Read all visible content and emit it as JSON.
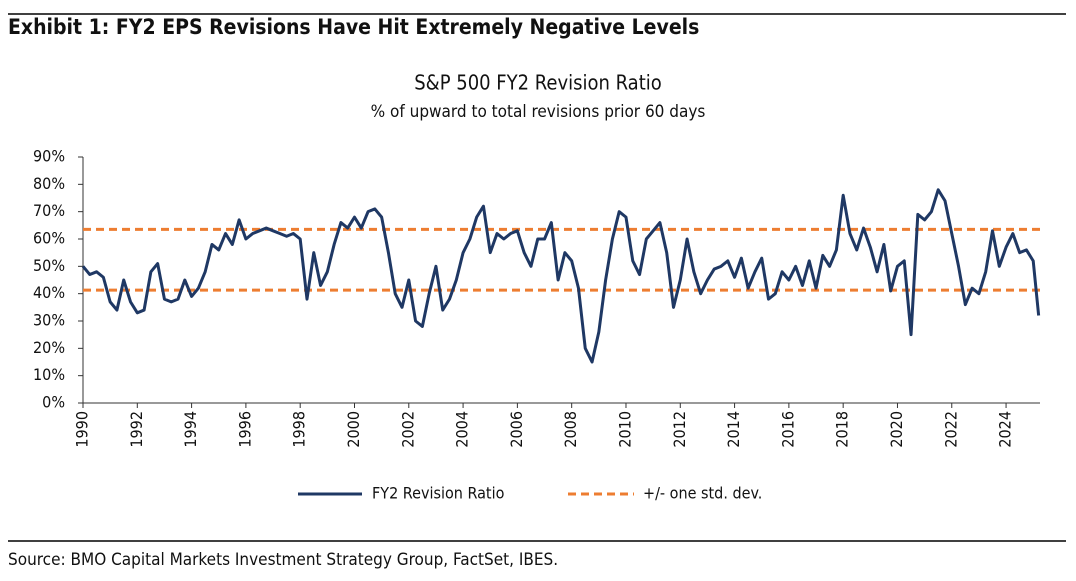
{
  "header": "Exhibit 1: FY2 EPS Revisions Have Hit Extremely Negative Levels",
  "source": "Source: BMO Capital Markets Investment Strategy Group, FactSet, IBES.",
  "chart_data": {
    "type": "line",
    "title": "S&P 500 FY2 Revision Ratio",
    "subtitle": "% of upward to total revisions prior 60 days",
    "x": [
      1990,
      1990.25,
      1990.5,
      1990.75,
      1991,
      1991.25,
      1991.5,
      1991.75,
      1992,
      1992.25,
      1992.5,
      1992.75,
      1993,
      1993.25,
      1993.5,
      1993.75,
      1994,
      1994.25,
      1994.5,
      1994.75,
      1995,
      1995.25,
      1995.5,
      1995.75,
      1996,
      1996.25,
      1996.5,
      1996.75,
      1997,
      1997.25,
      1997.5,
      1997.75,
      1998,
      1998.25,
      1998.5,
      1998.75,
      1999,
      1999.25,
      1999.5,
      1999.75,
      2000,
      2000.25,
      2000.5,
      2000.75,
      2001,
      2001.25,
      2001.5,
      2001.75,
      2002,
      2002.25,
      2002.5,
      2002.75,
      2003,
      2003.25,
      2003.5,
      2003.75,
      2004,
      2004.25,
      2004.5,
      2004.75,
      2005,
      2005.25,
      2005.5,
      2005.75,
      2006,
      2006.25,
      2006.5,
      2006.75,
      2007,
      2007.25,
      2007.5,
      2007.75,
      2008,
      2008.25,
      2008.5,
      2008.75,
      2009,
      2009.25,
      2009.5,
      2009.75,
      2010,
      2010.25,
      2010.5,
      2010.75,
      2011,
      2011.25,
      2011.5,
      2011.75,
      2012,
      2012.25,
      2012.5,
      2012.75,
      2013,
      2013.25,
      2013.5,
      2013.75,
      2014,
      2014.25,
      2014.5,
      2014.75,
      2015,
      2015.25,
      2015.5,
      2015.75,
      2016,
      2016.25,
      2016.5,
      2016.75,
      2017,
      2017.25,
      2017.5,
      2017.75,
      2018,
      2018.25,
      2018.5,
      2018.75,
      2019,
      2019.25,
      2019.5,
      2019.75,
      2020,
      2020.25,
      2020.5,
      2020.75,
      2021,
      2021.25,
      2021.5,
      2021.75,
      2022,
      2022.25,
      2022.5,
      2022.75,
      2023,
      2023.25,
      2023.5,
      2023.75,
      2024,
      2024.25,
      2024.5,
      2024.75,
      2025,
      2025.2
    ],
    "series": [
      {
        "name": "FY2 Revision Ratio",
        "color": "#1f3864",
        "values": [
          50,
          47,
          48,
          46,
          37,
          34,
          45,
          37,
          33,
          34,
          48,
          51,
          38,
          37,
          38,
          45,
          39,
          42,
          48,
          58,
          56,
          62,
          58,
          67,
          60,
          62,
          63,
          64,
          63,
          62,
          61,
          62,
          60,
          38,
          55,
          43,
          48,
          58,
          66,
          64,
          68,
          64,
          70,
          71,
          68,
          55,
          40,
          35,
          45,
          30,
          28,
          40,
          50,
          34,
          38,
          45,
          55,
          60,
          68,
          72,
          55,
          62,
          60,
          62,
          63,
          55,
          50,
          60,
          60,
          66,
          45,
          55,
          52,
          42,
          20,
          15,
          26,
          45,
          60,
          70,
          68,
          52,
          47,
          60,
          63,
          66,
          55,
          35,
          45,
          60,
          48,
          40,
          45,
          49,
          50,
          52,
          46,
          53,
          42,
          48,
          53,
          38,
          40,
          48,
          45,
          50,
          43,
          52,
          42,
          54,
          50,
          56,
          76,
          62,
          56,
          64,
          57,
          48,
          58,
          41,
          50,
          52,
          25,
          69,
          67,
          70,
          78,
          74,
          62,
          50,
          36,
          42,
          40,
          48,
          63,
          50,
          57,
          62,
          55,
          56,
          52,
          32
        ]
      }
    ],
    "bands": {
      "name": "+/- one std. dev.",
      "color": "#ed7d31",
      "values": [
        41.3,
        63.5
      ]
    },
    "xlim": [
      1990,
      2025.25
    ],
    "xticks": [
      1990,
      1992,
      1994,
      1996,
      1998,
      2000,
      2002,
      2004,
      2006,
      2008,
      2010,
      2012,
      2014,
      2016,
      2018,
      2020,
      2022,
      2024
    ],
    "ylim": [
      0,
      90
    ],
    "yticks": [
      {
        "value": 0,
        "label": "0%"
      },
      {
        "value": 10,
        "label": "10%"
      },
      {
        "value": 20,
        "label": "20%"
      },
      {
        "value": 30,
        "label": "30%"
      },
      {
        "value": 40,
        "label": "40%"
      },
      {
        "value": 50,
        "label": "50%"
      },
      {
        "value": 60,
        "label": "60%"
      },
      {
        "value": 70,
        "label": "70%"
      },
      {
        "value": 80,
        "label": "80%"
      },
      {
        "value": 90,
        "label": "90%"
      }
    ]
  }
}
